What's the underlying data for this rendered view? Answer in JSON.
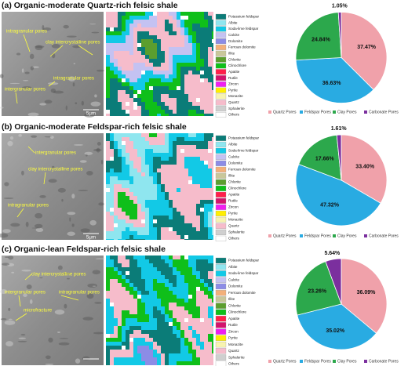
{
  "chart_data": [
    {
      "type": "pie",
      "title": "(a) Organic-moderate Quartz-rich felsic shale",
      "categories": [
        "Quartz Pores",
        "Feldspar Pores",
        "Clay Pores",
        "Carbonate Pores"
      ],
      "values": [
        37.47,
        36.63,
        24.84,
        1.05
      ],
      "value_labels": [
        "37.47%",
        "36.63%",
        "24.84%",
        "1.05%"
      ],
      "colors": [
        "#f0a1aa",
        "#29abe2",
        "#2ca84c",
        "#7b2f9e"
      ]
    },
    {
      "type": "pie",
      "title": "(b) Organic-moderate Feldspar-rich felsic shale",
      "categories": [
        "Quartz Pores",
        "Feldspar Pores",
        "Clay Pores",
        "Carbonate Pores"
      ],
      "values": [
        33.4,
        47.32,
        17.66,
        1.61
      ],
      "value_labels": [
        "33.40%",
        "47.32%",
        "17.66%",
        "1.61%"
      ],
      "colors": [
        "#f0a1aa",
        "#29abe2",
        "#2ca84c",
        "#7b2f9e"
      ]
    },
    {
      "type": "pie",
      "title": "(c) Organic-lean Feldspar-rich felsic shale",
      "categories": [
        "Quartz Pores",
        "Feldspar Pores",
        "Clay Pores",
        "Carbonate Pores"
      ],
      "values": [
        36.09,
        35.02,
        23.26,
        5.64
      ],
      "value_labels": [
        "36.09%",
        "35.02%",
        "23.26%",
        "5.64%"
      ],
      "colors": [
        "#f0a1aa",
        "#29abe2",
        "#2ca84c",
        "#7b2f9e"
      ]
    }
  ],
  "panels": [
    {
      "annotations": [
        "intragranular pores",
        "clay intercrystalline pores",
        "intragranular pores",
        "intergranular pores"
      ],
      "scale_label": "5μm"
    },
    {
      "annotations": [
        "intergranular pores",
        "clay intercrystalline pores",
        "intragranular pores"
      ],
      "scale_label": "5μm"
    },
    {
      "annotations": [
        "clay intercrystalline pores",
        "intragranular pores",
        "intergranular pores",
        "microfracture"
      ]
    }
  ],
  "mineral_legend": {
    "names": [
      "Potassium feldspar",
      "Albite",
      "Soda-lime feldspar",
      "Calcite",
      "Dolomite",
      "Ferroan dolomite",
      "Illite",
      "Chlorite",
      "Clinochlore",
      "Apatite",
      "Rutile",
      "Zircon",
      "Pyrite",
      "Monazite",
      "Quartz",
      "Sphalerite",
      "Others"
    ],
    "colors": [
      "#0b7c78",
      "#8fe6ef",
      "#12c9e6",
      "#c4c2f2",
      "#8c8ce6",
      "#f3b07a",
      "#c9c79a",
      "#5c9e2e",
      "#0fbf1a",
      "#ff1f4a",
      "#d3136c",
      "#f01ff0",
      "#ffee00",
      "#f7f3b0",
      "#f6bccb",
      "#cfcfcf",
      "#ffffff"
    ]
  }
}
